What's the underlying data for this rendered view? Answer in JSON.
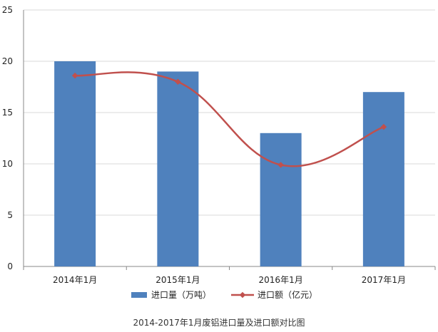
{
  "chart_data": {
    "type": "bar",
    "categories": [
      "2014年1月",
      "2015年1月",
      "2016年1月",
      "2017年1月"
    ],
    "series": [
      {
        "name": "进口量（万吨）",
        "kind": "bar",
        "color": "#4f81bd",
        "values": [
          20,
          19,
          13,
          17
        ]
      },
      {
        "name": "进口额（亿元）",
        "kind": "line",
        "color": "#c0504d",
        "values": [
          18.6,
          18.0,
          9.9,
          13.6
        ]
      }
    ],
    "ylim": [
      0,
      25
    ],
    "yticks": [
      0,
      5,
      10,
      15,
      20,
      25
    ],
    "grid": true,
    "legend": "bottom",
    "caption": "2014-2017年1月废铝进口量及进口额对比图"
  }
}
